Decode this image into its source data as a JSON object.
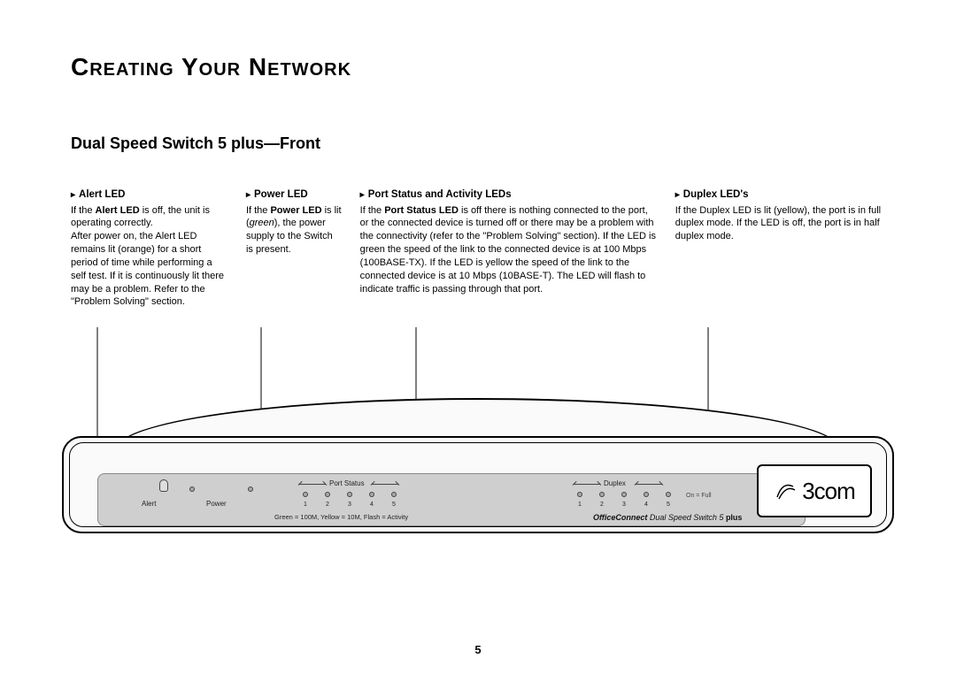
{
  "page": {
    "title": "Creating Your Network",
    "subtitle": "Dual Speed Switch 5 plus—Front",
    "number": "5"
  },
  "callouts": {
    "alert": {
      "heading": "Alert LED",
      "body": "If the <b>Alert LED</b> is off, the unit is operating correctly.<br>After power on, the Alert LED remains lit (orange) for a short period of time while performing a self test. If it is continuously lit there may be a problem. Refer to the \"Problem Solving\" section."
    },
    "power": {
      "heading": "Power LED",
      "body": "If the <b>Power LED</b> is lit (<i>green</i>), the power supply to the Switch is present."
    },
    "portstatus": {
      "heading": "Port Status and Activity LEDs",
      "body": "If the <b>Port Status LED</b> is off there is nothing connected to the port, or the connected device is turned off or there may be a problem with the connectivity (refer to the \"Problem Solving\" section). If the LED is green the speed of the link to the connected device is at 100 Mbps (100BASE-TX). If the LED is yellow the speed of the link to the connected device is at 10 Mbps (10BASE-T). The LED will flash to indicate traffic is passing through that port."
    },
    "duplex": {
      "heading": "Duplex LED's",
      "body": "If the Duplex LED is lit (yellow), the port is in full duplex mode. If the LED is off, the port is in half duplex mode."
    }
  },
  "panel": {
    "alert_label": "Alert",
    "power_label": "Power",
    "portstatus_label": "Port Status",
    "duplex_label": "Duplex",
    "on_full": "On = Full",
    "port_numbers": [
      "1",
      "2",
      "3",
      "4",
      "5"
    ],
    "legend": "Green = 100M, Yellow = 10M, Flash = Activity",
    "product": {
      "brand": "OfficeConnect",
      "name": "Dual Speed Switch 5",
      "suffix": "plus"
    }
  },
  "brand": "3com"
}
